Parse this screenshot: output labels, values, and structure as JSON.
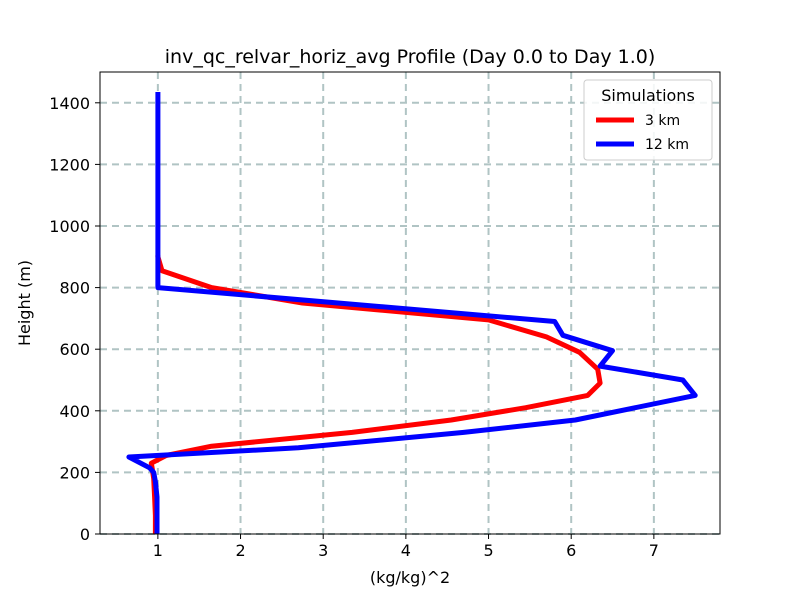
{
  "chart_data": {
    "type": "line",
    "title": "inv_qc_relvar_horiz_avg Profile (Day 0.0 to Day 1.0)",
    "xlabel": "(kg/kg)^2",
    "ylabel": "Height (m)",
    "xlim": [
      0.3,
      7.8
    ],
    "ylim": [
      0,
      1500
    ],
    "xticks": [
      1,
      2,
      3,
      4,
      5,
      6,
      7
    ],
    "yticks": [
      0,
      200,
      400,
      600,
      800,
      1000,
      1200,
      1400
    ],
    "xtick_labels": [
      "1",
      "2",
      "3",
      "4",
      "5",
      "6",
      "7"
    ],
    "ytick_labels": [
      "0",
      "200",
      "400",
      "600",
      "800",
      "1000",
      "1200",
      "1400"
    ],
    "grid": true,
    "legend": {
      "title": "Simulations",
      "placement": "top-right"
    },
    "series": [
      {
        "name": "3 km",
        "color": "#ff0000",
        "x": [
          0.97,
          0.97,
          0.96,
          0.95,
          0.93,
          0.92,
          1.1,
          1.65,
          3.35,
          4.55,
          5.45,
          6.2,
          6.35,
          6.32,
          6.1,
          5.7,
          5.0,
          2.75,
          1.65,
          1.05,
          1.0,
          1.0
        ],
        "y": [
          0,
          60,
          120,
          180,
          215,
          230,
          255,
          285,
          330,
          370,
          410,
          450,
          490,
          535,
          590,
          640,
          695,
          750,
          800,
          855,
          900,
          905
        ]
      },
      {
        "name": "12 km",
        "color": "#0000ff",
        "x": [
          0.99,
          0.99,
          0.99,
          0.97,
          0.95,
          0.9,
          0.65,
          2.7,
          4.7,
          6.05,
          7.5,
          7.35,
          6.35,
          6.5,
          5.9,
          5.8,
          1.0,
          1.0,
          1.0,
          1.0
        ],
        "y": [
          0,
          60,
          120,
          170,
          200,
          215,
          250,
          280,
          330,
          370,
          450,
          500,
          545,
          595,
          645,
          690,
          800,
          1000,
          1200,
          1435
        ]
      }
    ]
  }
}
